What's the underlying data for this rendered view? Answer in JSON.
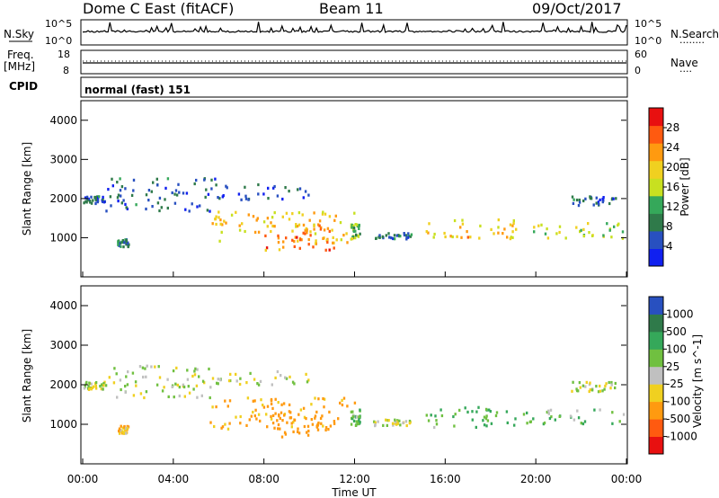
{
  "header": {
    "station": "Dome C East (fitACF)",
    "beam": "Beam 11",
    "date": "09/Oct/2017"
  },
  "nsky_panel": {
    "left_label": "N.Sky",
    "right_label": "N.Search",
    "right_dots": "........",
    "left_ticks": [
      "10^5",
      "10^0"
    ],
    "right_ticks": [
      "10^5",
      "10^0"
    ]
  },
  "freq_panel": {
    "left_label_1": "Freq.",
    "left_label_2": "[MHz]",
    "right_label": "Nave",
    "right_dots": "....",
    "left_ticks": [
      "18",
      "8"
    ],
    "right_ticks": [
      "60",
      "0"
    ]
  },
  "cpid": {
    "label": "CPID",
    "text": "normal (fast) 151"
  },
  "colors": {
    "power_scale": [
      "#1020f0",
      "#2850c0",
      "#2f7a4a",
      "#35a85a",
      "#c8e020",
      "#f0d020",
      "#ff9a10",
      "#ff5a10",
      "#e81010"
    ],
    "velocity_scale": [
      "#e81010",
      "#ff5a10",
      "#ff9a10",
      "#f0d020",
      "#c0c0c0",
      "#70c040",
      "#35a85a",
      "#2f7a4a",
      "#2850c0"
    ]
  },
  "chart_data": [
    {
      "type": "heatmap",
      "quantity": "Power",
      "ylabel": "Slant Range [km]",
      "ylim": [
        0,
        4500
      ],
      "yticks": [
        "4000",
        "3000",
        "2000",
        "1000"
      ],
      "xlim_hours": [
        0,
        24
      ],
      "colorbar_label": "Power [dB]",
      "colorbar_ticks": [
        "28",
        "24",
        "20",
        "16",
        "12",
        "8",
        "4"
      ],
      "colorbar_range": [
        0,
        32
      ],
      "scatter_regions": [
        {
          "t_start": 0.0,
          "t_end": 1.0,
          "range_start": 1900,
          "range_end": 2100,
          "value": 6
        },
        {
          "t_start": 1.0,
          "t_end": 5.8,
          "range_start": 1700,
          "range_end": 2550,
          "value": 6
        },
        {
          "t_start": 5.8,
          "t_end": 10.0,
          "range_start": 2000,
          "range_end": 2400,
          "value": 6
        },
        {
          "t_start": 5.6,
          "t_end": 12.0,
          "range_start": 900,
          "range_end": 1700,
          "value": 20
        },
        {
          "t_start": 8.0,
          "t_end": 11.2,
          "range_start": 700,
          "range_end": 1400,
          "value": 24
        },
        {
          "t_start": 11.8,
          "t_end": 12.2,
          "range_start": 1000,
          "range_end": 1400,
          "value": 14
        },
        {
          "t_start": 15.1,
          "t_end": 19.0,
          "range_start": 950,
          "range_end": 1500,
          "value": 20
        },
        {
          "t_start": 19.0,
          "t_end": 23.9,
          "range_start": 1000,
          "range_end": 1400,
          "value": 16
        },
        {
          "t_start": 21.5,
          "t_end": 23.5,
          "range_start": 1850,
          "range_end": 2100,
          "value": 6
        },
        {
          "t_start": 1.5,
          "t_end": 2.0,
          "range_start": 800,
          "range_end": 1000,
          "value": 8
        },
        {
          "t_start": 12.8,
          "t_end": 14.5,
          "range_start": 1000,
          "range_end": 1150,
          "value": 8
        }
      ]
    },
    {
      "type": "heatmap",
      "quantity": "Velocity",
      "ylabel": "Slant Range [km]",
      "ylim": [
        0,
        4500
      ],
      "yticks": [
        "4000",
        "3000",
        "2000",
        "1000"
      ],
      "xlim_hours": [
        0,
        24
      ],
      "xticks": [
        "00:00",
        "04:00",
        "08:00",
        "12:00",
        "16:00",
        "20:00",
        "00:00"
      ],
      "xlabel": "Time UT",
      "colorbar_label": "Velocity [m s^-1]",
      "colorbar_ticks": [
        "1000",
        "500",
        "100",
        "25",
        "-25",
        "-100",
        "-500",
        "-1000"
      ],
      "scatter_regions": [
        {
          "t_start": 0.0,
          "t_end": 1.0,
          "range_start": 1900,
          "range_end": 2100,
          "value": 0
        },
        {
          "t_start": 1.0,
          "t_end": 5.8,
          "range_start": 1700,
          "range_end": 2550,
          "value": 0
        },
        {
          "t_start": 5.8,
          "t_end": 10.0,
          "range_start": 2000,
          "range_end": 2400,
          "value": 0
        },
        {
          "t_start": 5.6,
          "t_end": 12.0,
          "range_start": 900,
          "range_end": 1700,
          "value": -150
        },
        {
          "t_start": 8.0,
          "t_end": 11.2,
          "range_start": 700,
          "range_end": 1400,
          "value": -200
        },
        {
          "t_start": 11.8,
          "t_end": 12.2,
          "range_start": 1000,
          "range_end": 1400,
          "value": 100
        },
        {
          "t_start": 15.1,
          "t_end": 19.0,
          "range_start": 950,
          "range_end": 1500,
          "value": 120
        },
        {
          "t_start": 19.0,
          "t_end": 23.9,
          "range_start": 1000,
          "range_end": 1400,
          "value": 80
        },
        {
          "t_start": 21.5,
          "t_end": 23.5,
          "range_start": 1850,
          "range_end": 2100,
          "value": 0
        },
        {
          "t_start": 1.5,
          "t_end": 2.0,
          "range_start": 800,
          "range_end": 1000,
          "value": -100
        },
        {
          "t_start": 12.8,
          "t_end": 14.5,
          "range_start": 1000,
          "range_end": 1150,
          "value": 0
        }
      ]
    }
  ]
}
